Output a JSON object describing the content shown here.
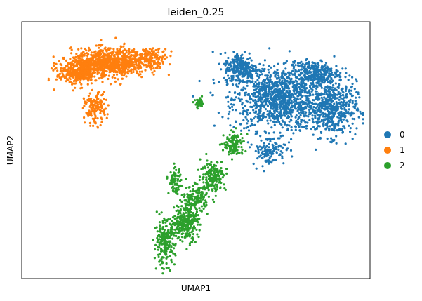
{
  "chart_data": {
    "type": "scatter",
    "title": "leiden_0.25",
    "xlabel": "UMAP1",
    "ylabel": "UMAP2",
    "xlim": [
      0,
      100
    ],
    "ylim": [
      0,
      100
    ],
    "grid": false,
    "ticks": false,
    "legend_position": "right",
    "series": [
      {
        "name": "0",
        "color": "#1f77b4",
        "clusters": [
          {
            "cx": 74,
            "cy": 70,
            "sx": 11,
            "sy": 10,
            "n": 1100
          },
          {
            "cx": 89,
            "cy": 66,
            "sx": 6,
            "sy": 9,
            "n": 500
          },
          {
            "cx": 63,
            "cy": 82,
            "sx": 4,
            "sy": 5,
            "n": 250
          },
          {
            "cx": 71,
            "cy": 50,
            "sx": 4,
            "sy": 5,
            "n": 120
          },
          {
            "cx": 84,
            "cy": 80,
            "sx": 6,
            "sy": 4,
            "n": 300
          }
        ]
      },
      {
        "name": "1",
        "color": "#ff7f0e",
        "clusters": [
          {
            "cx": 25,
            "cy": 84,
            "sx": 9,
            "sy": 4.5,
            "n": 900
          },
          {
            "cx": 16,
            "cy": 80,
            "sx": 5,
            "sy": 4,
            "n": 300
          },
          {
            "cx": 21,
            "cy": 66,
            "sx": 2.5,
            "sy": 5,
            "n": 150
          },
          {
            "cx": 37,
            "cy": 86,
            "sx": 4,
            "sy": 3,
            "n": 150
          }
        ]
      },
      {
        "name": "2",
        "color": "#2ca02c",
        "clusters": [
          {
            "cx": 47,
            "cy": 22,
            "sx": 3,
            "sy": 6,
            "n": 280
          },
          {
            "cx": 41,
            "cy": 14,
            "sx": 2.5,
            "sy": 7,
            "n": 220
          },
          {
            "cx": 55,
            "cy": 40,
            "sx": 3,
            "sy": 5,
            "n": 180
          },
          {
            "cx": 61,
            "cy": 52,
            "sx": 2.5,
            "sy": 4,
            "n": 120
          },
          {
            "cx": 50,
            "cy": 31,
            "sx": 3,
            "sy": 4,
            "n": 150
          },
          {
            "cx": 44,
            "cy": 38,
            "sx": 1.5,
            "sy": 4,
            "n": 80
          },
          {
            "cx": 51,
            "cy": 68,
            "sx": 1,
            "sy": 1.5,
            "n": 50
          }
        ]
      }
    ]
  }
}
